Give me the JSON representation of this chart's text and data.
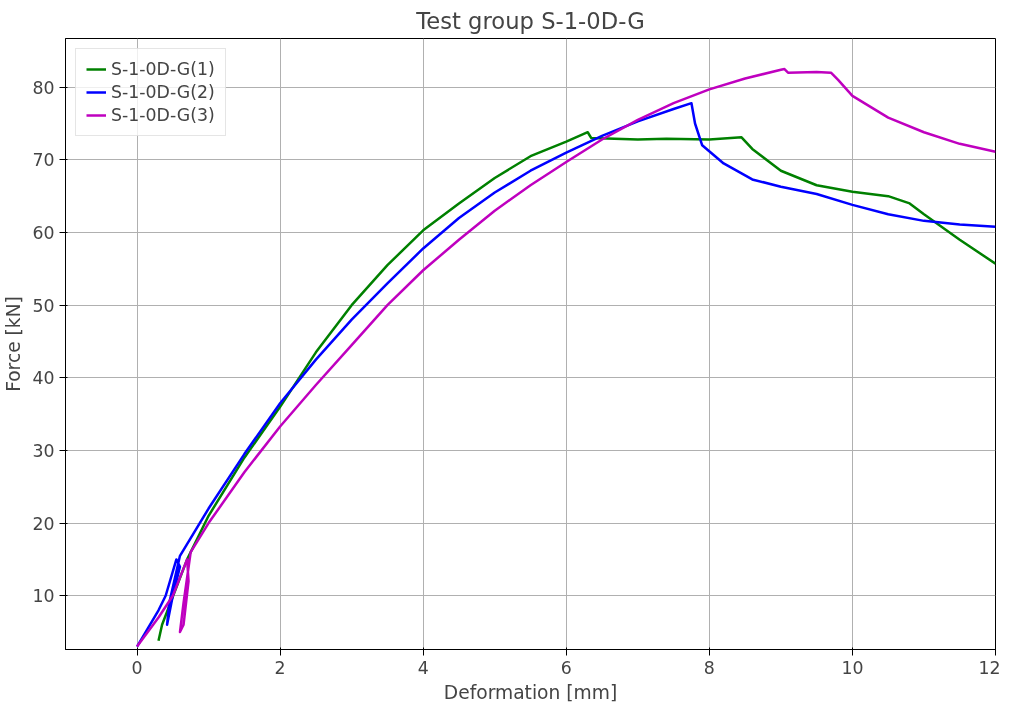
{
  "chart_data": {
    "type": "line",
    "title": "Test group S-1-0D-G",
    "xlabel": "Deformation [mm]",
    "ylabel": "Force [kN]",
    "xlim": [
      -1,
      12
    ],
    "ylim": [
      2.6,
      86.7
    ],
    "xticks": [
      0,
      2,
      4,
      6,
      8,
      10,
      12
    ],
    "yticks": [
      10,
      20,
      30,
      40,
      50,
      60,
      70,
      80
    ],
    "grid": true,
    "legend": "top left",
    "line_style": "solid",
    "series": [
      {
        "name": "S-1-0D-G(1)",
        "color": "#008000",
        "x": [
          0.3,
          0.35,
          0.7,
          1,
          1.5,
          2,
          2.5,
          3,
          3.5,
          4,
          4.5,
          5,
          5.5,
          6,
          6.3,
          6.35,
          7,
          7.4,
          8,
          8.45,
          8.6,
          9,
          9.5,
          10,
          10.5,
          10.8,
          11,
          11.5,
          12
        ],
        "values": [
          3.8,
          6,
          15,
          21,
          29,
          36,
          43.5,
          50,
          55.5,
          60.3,
          64,
          67.5,
          70.5,
          72.5,
          73.8,
          73,
          72.8,
          72.9,
          72.8,
          73.1,
          71.5,
          68.5,
          66.5,
          65.6,
          65,
          64,
          62.5,
          59,
          55.7
        ]
      },
      {
        "name": "S-1-0D-G(2)",
        "color": "#0000ff",
        "x": [
          0,
          0.3,
          0.4,
          0.55,
          0.6,
          0.5,
          0.42,
          0.45,
          0.6,
          1,
          1.5,
          2,
          2.5,
          3,
          3.5,
          4,
          4.5,
          5,
          5.5,
          6,
          6.5,
          7,
          7.5,
          7.75,
          7.8,
          7.9,
          8.2,
          8.6,
          9,
          9.5,
          10,
          10.5,
          11,
          11.5,
          12
        ],
        "values": [
          3,
          8,
          10,
          15,
          14,
          10,
          6,
          9,
          15.5,
          22,
          29.5,
          36.5,
          42.5,
          48,
          53,
          57.8,
          62,
          65.5,
          68.5,
          71,
          73.3,
          75.3,
          77,
          77.8,
          75,
          72,
          69.5,
          67.3,
          66.3,
          65.3,
          63.8,
          62.5,
          61.6,
          61.1,
          60.8
        ]
      },
      {
        "name": "S-1-0D-G(3)",
        "color": "#bf00bf",
        "x": [
          0,
          0.3,
          0.5,
          0.7,
          0.72,
          0.65,
          0.6,
          0.65,
          0.75,
          1,
          1.5,
          2,
          2.5,
          3,
          3.5,
          4,
          4.5,
          5,
          5.5,
          6,
          6.5,
          7,
          7.5,
          8,
          8.5,
          9,
          9.05,
          9.1,
          9.5,
          9.7,
          9.8,
          10,
          10.5,
          11,
          11.5,
          12
        ],
        "values": [
          3,
          7,
          10,
          15,
          12,
          6,
          5,
          9,
          16,
          20,
          27,
          33.3,
          39,
          44.5,
          50,
          54.8,
          59,
          63,
          66.5,
          69.7,
          72.8,
          75.5,
          77.8,
          79.7,
          81.2,
          82.4,
          82.5,
          82,
          82.1,
          82,
          81,
          78.8,
          75.8,
          73.8,
          72.2,
          71.1
        ]
      }
    ]
  }
}
